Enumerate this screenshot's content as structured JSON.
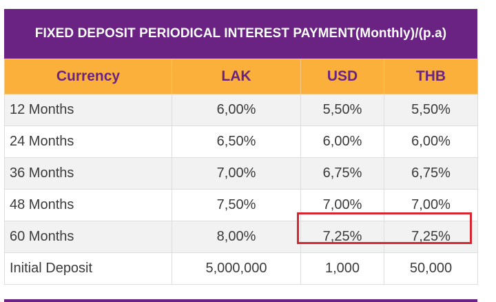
{
  "title": "FIXED DEPOSIT PERIODICAL INTEREST PAYMENT(Monthly)/(p.a)",
  "headers": [
    "Currency",
    "LAK",
    "USD",
    "THB"
  ],
  "rows": [
    {
      "label": "12 Months",
      "lak": "6,00%",
      "usd": "5,50%",
      "thb": "5,50%"
    },
    {
      "label": "24 Months",
      "lak": "6,50%",
      "usd": "6,00%",
      "thb": "6,00%"
    },
    {
      "label": "36 Months",
      "lak": "7,00%",
      "usd": "6,75%",
      "thb": "6,75%"
    },
    {
      "label": "48 Months",
      "lak": "7,50%",
      "usd": "7,00%",
      "thb": "7,00%"
    },
    {
      "label": "60 Months",
      "lak": "8,00%",
      "usd": "7,25%",
      "thb": "7,25%"
    },
    {
      "label": "Initial Deposit",
      "lak": "5,000,000",
      "usd": "1,000",
      "thb": "50,000"
    }
  ],
  "colors": {
    "title_bg": "#6a2383",
    "header_bg": "#fbb03b",
    "header_text": "#6a2383",
    "highlight": "#d7262f"
  }
}
